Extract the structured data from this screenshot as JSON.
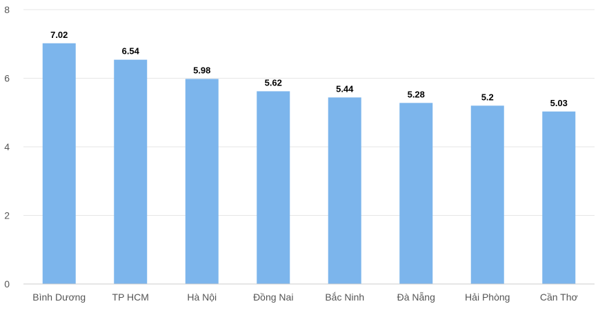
{
  "chart_data": {
    "type": "bar",
    "title": "",
    "xlabel": "",
    "ylabel": "",
    "categories": [
      "Bình Dương",
      "TP HCM",
      "Hà Nội",
      "Đồng Nai",
      "Bắc Ninh",
      "Đà Nẵng",
      "Hải Phòng",
      "Cần Thơ"
    ],
    "values": [
      7.02,
      6.54,
      5.98,
      5.62,
      5.44,
      5.28,
      5.2,
      5.03
    ],
    "value_labels": [
      "7.02",
      "6.54",
      "5.98",
      "5.62",
      "5.44",
      "5.28",
      "5.2",
      "5.03"
    ],
    "ylim": [
      0,
      8
    ],
    "yticks": [
      "0",
      "2",
      "4",
      "6",
      "8"
    ],
    "grid": true,
    "legend": "none",
    "bar_color": "#7cb5ec"
  }
}
